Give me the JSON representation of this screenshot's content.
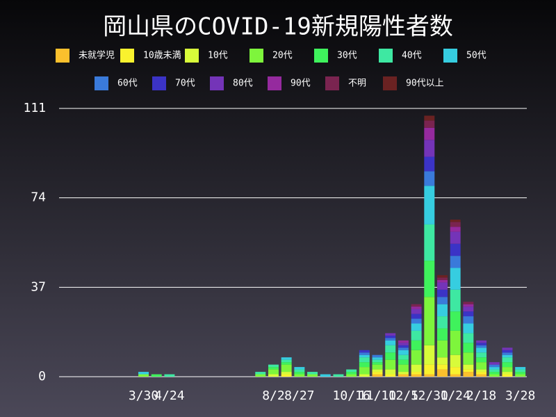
{
  "chart_data": {
    "type": "stacked_bar",
    "title": "岡山県のCOVID-19新規陽性者数",
    "categories": [
      null,
      null,
      null,
      null,
      null,
      null,
      "3/30",
      null,
      "4/24",
      null,
      null,
      null,
      null,
      null,
      null,
      null,
      "8/2",
      null,
      "8/27",
      null,
      null,
      null,
      "10/16",
      null,
      "11/10",
      null,
      "12/5",
      null,
      "12/30",
      null,
      "1/24",
      null,
      "2/18",
      null,
      null,
      "3/28"
    ],
    "ylim": [
      0,
      111
    ],
    "yticks": [
      0,
      37,
      74,
      111
    ],
    "grid": true,
    "series": [
      {
        "name": "未就学児",
        "color": "#fbc02d",
        "values": [
          0,
          0,
          0,
          0,
          0,
          0,
          0,
          0,
          0,
          0,
          0,
          0,
          0,
          0,
          0,
          0,
          0,
          0,
          0,
          0,
          0,
          0,
          0,
          0,
          1,
          0,
          1,
          1,
          1,
          3,
          1,
          2,
          1,
          0,
          0,
          0
        ]
      },
      {
        "name": "10歳未満",
        "color": "#f9f22e",
        "values": [
          0,
          0,
          0,
          0,
          0,
          0,
          0,
          0,
          0,
          0,
          0,
          0,
          0,
          0,
          0,
          0,
          0,
          1,
          0,
          0,
          0,
          0,
          0,
          0,
          1,
          1,
          0,
          1,
          4,
          2,
          3,
          1,
          1,
          0,
          1,
          0
        ]
      },
      {
        "name": "10代",
        "color": "#d8fb3a",
        "values": [
          0,
          0,
          0,
          0,
          0,
          0,
          0,
          0,
          0,
          0,
          0,
          0,
          0,
          0,
          0,
          0,
          1,
          1,
          0,
          0,
          0,
          0,
          0,
          1,
          1,
          2,
          1,
          3,
          8,
          3,
          5,
          2,
          1,
          0,
          1,
          0
        ]
      },
      {
        "name": "20代",
        "color": "#7ef53c",
        "values": [
          0,
          0,
          0,
          0,
          0,
          0,
          1,
          0,
          0,
          0,
          0,
          0,
          0,
          0,
          0,
          1,
          2,
          3,
          1,
          1,
          0,
          0,
          1,
          3,
          2,
          4,
          3,
          6,
          20,
          7,
          10,
          5,
          3,
          1,
          2,
          1
        ]
      },
      {
        "name": "30代",
        "color": "#3ff25c",
        "values": [
          0,
          0,
          0,
          0,
          0,
          0,
          0,
          1,
          0,
          0,
          0,
          0,
          0,
          0,
          0,
          0,
          1,
          1,
          1,
          0,
          0,
          0,
          1,
          2,
          1,
          3,
          2,
          4,
          15,
          5,
          8,
          4,
          2,
          1,
          2,
          1
        ]
      },
      {
        "name": "40代",
        "color": "#3ee8a2",
        "values": [
          0,
          0,
          0,
          0,
          0,
          0,
          0,
          0,
          1,
          0,
          0,
          0,
          0,
          0,
          0,
          1,
          1,
          1,
          1,
          1,
          0,
          1,
          1,
          2,
          1,
          3,
          2,
          4,
          15,
          5,
          9,
          4,
          2,
          1,
          2,
          1
        ]
      },
      {
        "name": "50代",
        "color": "#36cde0",
        "values": [
          0,
          0,
          0,
          0,
          0,
          0,
          1,
          0,
          0,
          0,
          0,
          0,
          0,
          0,
          0,
          0,
          0,
          1,
          1,
          0,
          1,
          0,
          0,
          1,
          1,
          2,
          2,
          3,
          16,
          5,
          9,
          4,
          2,
          1,
          1,
          1
        ]
      },
      {
        "name": "60代",
        "color": "#3a7ada",
        "values": [
          0,
          0,
          0,
          0,
          0,
          0,
          0,
          0,
          0,
          0,
          0,
          0,
          0,
          0,
          0,
          0,
          0,
          0,
          0,
          0,
          0,
          0,
          0,
          1,
          1,
          1,
          1,
          2,
          6,
          3,
          5,
          3,
          1,
          1,
          1,
          0
        ]
      },
      {
        "name": "70代",
        "color": "#3b33c6",
        "values": [
          0,
          0,
          0,
          0,
          0,
          0,
          0,
          0,
          0,
          0,
          0,
          0,
          0,
          0,
          0,
          0,
          0,
          0,
          0,
          0,
          0,
          0,
          0,
          1,
          0,
          1,
          1,
          2,
          6,
          3,
          5,
          2,
          1,
          0,
          1,
          0
        ]
      },
      {
        "name": "80代",
        "color": "#7434b8",
        "values": [
          0,
          0,
          0,
          0,
          0,
          0,
          0,
          0,
          0,
          0,
          0,
          0,
          0,
          0,
          0,
          0,
          0,
          0,
          0,
          0,
          0,
          0,
          0,
          0,
          0,
          1,
          1,
          2,
          7,
          3,
          5,
          2,
          1,
          1,
          1,
          0
        ]
      },
      {
        "name": "90代",
        "color": "#952a9e",
        "values": [
          0,
          0,
          0,
          0,
          0,
          0,
          0,
          0,
          0,
          0,
          0,
          0,
          0,
          0,
          0,
          0,
          0,
          0,
          0,
          0,
          0,
          0,
          0,
          0,
          0,
          0,
          1,
          1,
          5,
          1,
          2,
          1,
          0,
          0,
          0,
          0
        ]
      },
      {
        "name": "不明",
        "color": "#7a2450",
        "values": [
          0,
          0,
          0,
          0,
          0,
          0,
          0,
          0,
          0,
          0,
          0,
          0,
          0,
          0,
          0,
          0,
          0,
          0,
          0,
          0,
          0,
          0,
          0,
          0,
          0,
          0,
          0,
          1,
          3,
          1,
          2,
          1,
          0,
          0,
          0,
          0
        ]
      },
      {
        "name": "90代以上",
        "color": "#6a2222",
        "values": [
          0,
          0,
          0,
          0,
          0,
          0,
          0,
          0,
          0,
          0,
          0,
          0,
          0,
          0,
          0,
          0,
          0,
          0,
          0,
          0,
          0,
          0,
          0,
          0,
          0,
          0,
          0,
          0,
          2,
          1,
          1,
          0,
          0,
          0,
          0,
          0
        ]
      }
    ]
  }
}
